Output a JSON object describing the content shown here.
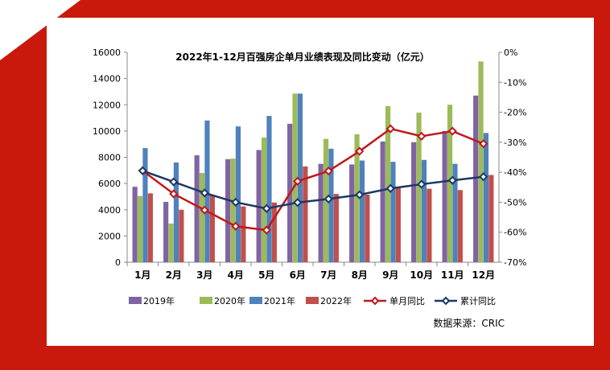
{
  "colors": {
    "frame": "#c8190c",
    "panel": "#ffffff"
  },
  "chart_data": {
    "type": "bar",
    "title": "2022年1-12月百强房企单月业绩表现及同比变动（亿元）",
    "categories": [
      "1月",
      "2月",
      "3月",
      "4月",
      "5月",
      "6月",
      "7月",
      "8月",
      "9月",
      "10月",
      "11月",
      "12月"
    ],
    "y_left": {
      "ylim": [
        0,
        16000
      ],
      "ticks": [
        0,
        2000,
        4000,
        6000,
        8000,
        10000,
        12000,
        14000,
        16000
      ]
    },
    "y_right": {
      "ylim": [
        -70,
        0
      ],
      "ticks": [
        "-70%",
        "-60%",
        "-50%",
        "-40%",
        "-30%",
        "-20%",
        "-10%",
        "0%"
      ],
      "tick_values": [
        -70,
        -60,
        -50,
        -40,
        -30,
        -20,
        -10,
        0
      ]
    },
    "series": [
      {
        "name": "2019年",
        "type": "bar",
        "color": "#8064a2",
        "values": [
          5750,
          4600,
          8150,
          7850,
          8550,
          10550,
          7500,
          7450,
          9200,
          9150,
          10000,
          12700
        ]
      },
      {
        "name": "2020年",
        "type": "bar",
        "color": "#9bbb59",
        "values": [
          5050,
          2950,
          6800,
          7900,
          9500,
          12850,
          9400,
          9750,
          11900,
          11400,
          12000,
          15300
        ]
      },
      {
        "name": "2021年",
        "type": "bar",
        "color": "#4f81bd",
        "values": [
          8700,
          7600,
          10800,
          10350,
          11150,
          12850,
          8650,
          7750,
          7650,
          7800,
          7500,
          9850
        ]
      },
      {
        "name": "2022年",
        "type": "bar",
        "color": "#c0504d",
        "values": [
          5250,
          4000,
          5100,
          4250,
          4550,
          7300,
          5200,
          5150,
          5650,
          5600,
          5500,
          6650
        ]
      },
      {
        "name": "单月同比",
        "type": "line",
        "axis": "right",
        "color": "#c0191c",
        "values": [
          -39.5,
          -47.2,
          -52.6,
          -58.0,
          -59.3,
          -43.0,
          -39.6,
          -33.0,
          -25.5,
          -28.0,
          -26.3,
          -30.5
        ]
      },
      {
        "name": "累计同比",
        "type": "line",
        "axis": "right",
        "color": "#1f3864",
        "values": [
          -39.5,
          -43.2,
          -46.9,
          -50.0,
          -52.1,
          -50.1,
          -48.9,
          -47.5,
          -45.4,
          -44.0,
          -42.7,
          -41.5
        ]
      }
    ],
    "grid": false,
    "legend": "bottom",
    "source": "数据来源：CRIC"
  }
}
